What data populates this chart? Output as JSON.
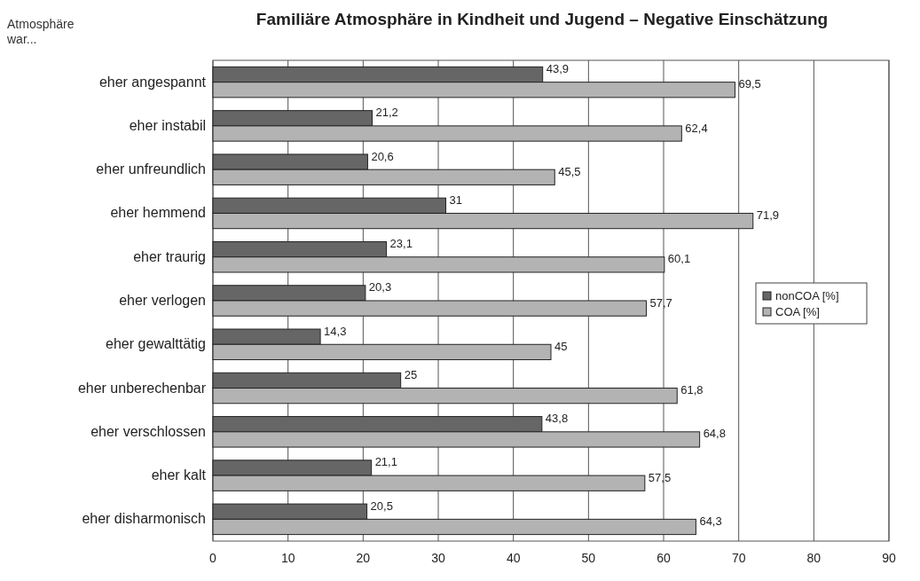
{
  "chart_data": {
    "type": "bar",
    "orientation": "horizontal",
    "title": "Familiäre Atmosphäre in Kindheit und Jugend – Negative Einschätzung",
    "ylabel": "Atmosphäre war...",
    "categories": [
      "eher angespannt",
      "eher instabil",
      "eher unfreundlich",
      "eher hemmend",
      "eher traurig",
      "eher verlogen",
      "eher gewalttätig",
      "eher unberechenbar",
      "eher verschlossen",
      "eher kalt",
      "eher disharmonisch"
    ],
    "series": [
      {
        "name": "nonCOA [%]",
        "color": "#666666",
        "values": [
          43.9,
          21.2,
          20.6,
          31,
          23.1,
          20.3,
          14.3,
          25,
          43.8,
          21.1,
          20.5
        ],
        "value_labels": [
          "43,9",
          "21,2",
          "20,6",
          "31",
          "23,1",
          "20,3",
          "14,3",
          "25",
          "43,8",
          "21,1",
          "20,5"
        ]
      },
      {
        "name": "COA [%]",
        "color": "#b3b3b3",
        "values": [
          69.5,
          62.4,
          45.5,
          71.9,
          60.1,
          57.7,
          45,
          61.8,
          64.8,
          57.5,
          64.3
        ],
        "value_labels": [
          "69,5",
          "62,4",
          "45,5",
          "71,9",
          "60,1",
          "57,7",
          "45",
          "61,8",
          "64,8",
          "57,5",
          "64,3"
        ]
      }
    ],
    "xlim": [
      0,
      90
    ],
    "xticks": [
      0,
      10,
      20,
      30,
      40,
      50,
      60,
      70,
      80,
      90
    ],
    "grid": "x",
    "legend": "right"
  }
}
